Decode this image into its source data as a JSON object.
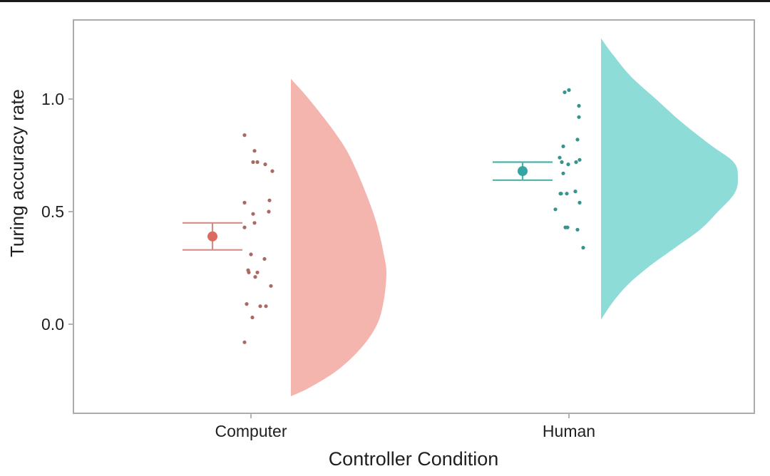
{
  "figure": {
    "background": "#ffffff",
    "top_edge_line_color": "#1a1a1a",
    "panel": {
      "border_color": "#ababab",
      "fill": "#ffffff"
    },
    "axis": {
      "text_color": "#1f1f1f",
      "tick_color": "#b3b3b3"
    }
  },
  "chart_data": {
    "type": "raincloud",
    "description": "Half-violin density (cloud) with jittered raw data points (rain) and mean with error bars per condition",
    "title": "",
    "xlabel": "Controller Condition",
    "ylabel": "Turing accuracy rate",
    "categories": [
      "Computer",
      "Human"
    ],
    "ylim": [
      -0.45,
      1.35
    ],
    "yticks": [
      1.0,
      0.5,
      0.0
    ],
    "ytick_labels": [
      "1.0",
      "0.5",
      "0.0"
    ],
    "grid": false,
    "legend": false,
    "errorbar_cap_halfwidth": 42,
    "mean_point_radius": 7,
    "rain_point_radius": 2.6,
    "series": [
      {
        "name": "Computer",
        "violin_fill": "#f4b5af",
        "point_color": "#aa6a63",
        "mean_color": "#dd6a61",
        "errorbar_color": "#d48c86",
        "mean": 0.39,
        "ci_low": 0.33,
        "ci_high": 0.45,
        "points": [
          0.84,
          0.77,
          0.72,
          0.72,
          0.71,
          0.68,
          0.55,
          0.54,
          0.5,
          0.49,
          0.45,
          0.43,
          0.31,
          0.29,
          0.24,
          0.23,
          0.23,
          0.21,
          0.17,
          0.09,
          0.08,
          0.08,
          0.03,
          -0.08
        ],
        "jitter_dx": [
          -9,
          5,
          3,
          9,
          20,
          30,
          26,
          -9,
          25,
          3,
          5,
          -9,
          0,
          19,
          -4,
          -3,
          9,
          6,
          28,
          -6,
          13,
          21,
          2,
          -9
        ],
        "violin_profile": [
          [
            1.09,
            0
          ],
          [
            1.02,
            20
          ],
          [
            0.95,
            38
          ],
          [
            0.85,
            62
          ],
          [
            0.75,
            82
          ],
          [
            0.6,
            103
          ],
          [
            0.45,
            120
          ],
          [
            0.3,
            131
          ],
          [
            0.22,
            134
          ],
          [
            0.1,
            130
          ],
          [
            0.0,
            121
          ],
          [
            -0.1,
            100
          ],
          [
            -0.2,
            67
          ],
          [
            -0.28,
            27
          ],
          [
            -0.32,
            0
          ]
        ],
        "errorbar_dx": -54,
        "violin_edge_dx": 56
      },
      {
        "name": "Human",
        "violin_fill": "#8edcd8",
        "point_color": "#35948d",
        "mean_color": "#35a5a4",
        "errorbar_color": "#4fb1ae",
        "mean": 0.68,
        "ci_low": 0.64,
        "ci_high": 0.72,
        "points": [
          1.04,
          1.03,
          0.97,
          0.92,
          0.82,
          0.79,
          0.74,
          0.73,
          0.72,
          0.72,
          0.71,
          0.67,
          0.59,
          0.58,
          0.58,
          0.58,
          0.54,
          0.51,
          0.43,
          0.43,
          0.42,
          0.34
        ],
        "jitter_dx": [
          0,
          -6,
          14,
          14,
          12,
          -8,
          -13,
          15,
          -10,
          10,
          -1,
          -8,
          9,
          -12,
          -3,
          -11,
          15,
          -19,
          -2,
          -5,
          12,
          20
        ],
        "violin_profile": [
          [
            1.27,
            0
          ],
          [
            1.2,
            16
          ],
          [
            1.1,
            42
          ],
          [
            1.0,
            77
          ],
          [
            0.9,
            112
          ],
          [
            0.8,
            152
          ],
          [
            0.72,
            186
          ],
          [
            0.65,
            192
          ],
          [
            0.58,
            187
          ],
          [
            0.5,
            164
          ],
          [
            0.42,
            139
          ],
          [
            0.34,
            104
          ],
          [
            0.26,
            69
          ],
          [
            0.18,
            39
          ],
          [
            0.1,
            17
          ],
          [
            0.02,
            0
          ]
        ],
        "errorbar_dx": -65,
        "violin_edge_dx": 45
      }
    ]
  }
}
